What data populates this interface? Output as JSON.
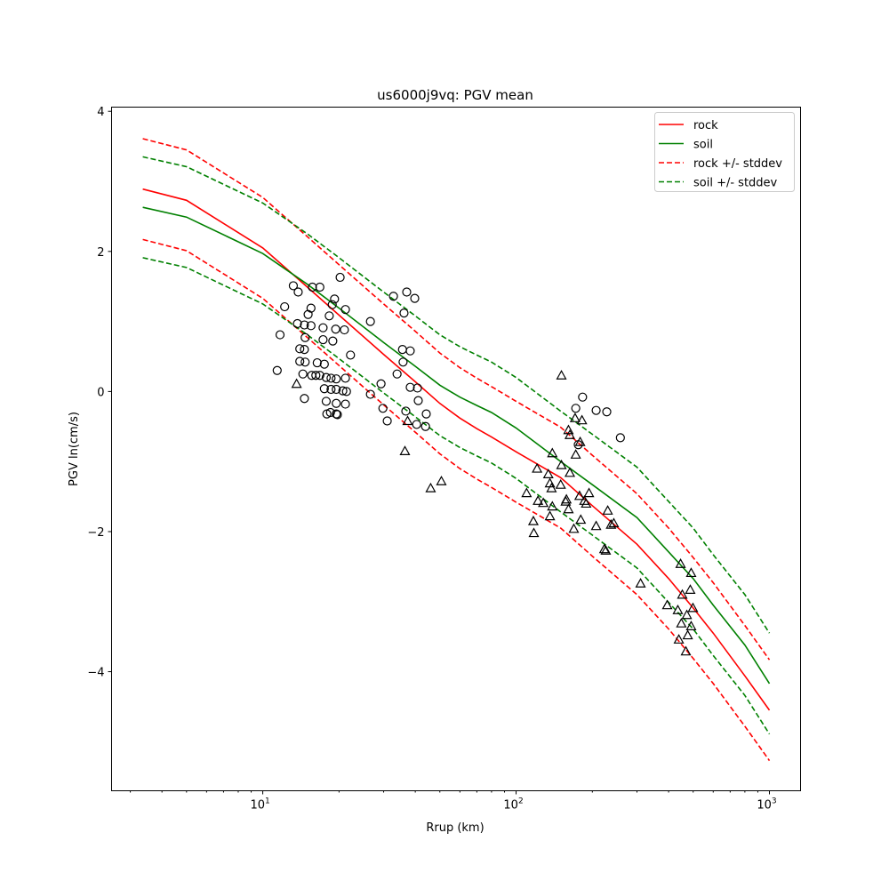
{
  "chart_data": {
    "type": "line",
    "title": "us6000j9vq: PGV mean",
    "xlabel": "Rrup (km)",
    "ylabel": "PGV ln(cm/s)",
    "xscale": "log",
    "xlim": [
      2.53,
      1327
    ],
    "ylim": [
      -5.7,
      4.06
    ],
    "yticks": [
      -4,
      -2,
      0,
      2,
      4
    ],
    "ytick_labels": [
      "−4",
      "−2",
      "0",
      "2",
      "4"
    ],
    "xticks": [
      10,
      100,
      1000
    ],
    "xtick_labels": [
      {
        "base": "10",
        "exp": "1"
      },
      {
        "base": "10",
        "exp": "2"
      },
      {
        "base": "10",
        "exp": "3"
      }
    ],
    "legend_position": "top-right",
    "x": [
      3.36,
      5,
      10,
      15,
      20,
      30,
      40,
      50,
      60,
      70,
      80,
      100,
      150,
      200,
      300,
      400,
      500,
      600,
      800,
      1000
    ],
    "stddev": 0.72,
    "series": [
      {
        "name": "rock",
        "color": "#ff0000",
        "style": "solid",
        "values": [
          2.89,
          2.73,
          2.05,
          1.49,
          1.09,
          0.53,
          0.14,
          -0.17,
          -0.38,
          -0.53,
          -0.65,
          -0.86,
          -1.23,
          -1.63,
          -2.18,
          -2.67,
          -3.09,
          -3.45,
          -4.06,
          -4.55
        ]
      },
      {
        "name": "soil",
        "color": "#008000",
        "style": "solid",
        "values": [
          2.63,
          2.49,
          1.97,
          1.53,
          1.19,
          0.7,
          0.36,
          0.09,
          -0.08,
          -0.2,
          -0.3,
          -0.52,
          -1.0,
          -1.33,
          -1.8,
          -2.29,
          -2.67,
          -3.05,
          -3.62,
          -4.17
        ]
      }
    ],
    "legend": [
      {
        "label": "rock",
        "color": "#ff0000",
        "style": "solid"
      },
      {
        "label": "soil",
        "color": "#008000",
        "style": "solid"
      },
      {
        "label": "rock +/- stddev",
        "color": "#ff0000",
        "style": "dashed"
      },
      {
        "label": "soil +/- stddev",
        "color": "#008000",
        "style": "dashed"
      }
    ],
    "observations_circle": [
      [
        13.2,
        1.51
      ],
      [
        13.8,
        1.42
      ],
      [
        15.7,
        1.49
      ],
      [
        16.8,
        1.49
      ],
      [
        20.2,
        1.63
      ],
      [
        19.2,
        1.32
      ],
      [
        18.8,
        1.24
      ],
      [
        21.2,
        1.17
      ],
      [
        15.5,
        1.19
      ],
      [
        15.1,
        1.1
      ],
      [
        12.2,
        1.21
      ],
      [
        18.3,
        1.08
      ],
      [
        13.7,
        0.97
      ],
      [
        14.6,
        0.95
      ],
      [
        15.5,
        0.94
      ],
      [
        17.3,
        0.91
      ],
      [
        19.4,
        0.89
      ],
      [
        21.0,
        0.88
      ],
      [
        26.6,
        1.0
      ],
      [
        11.7,
        0.81
      ],
      [
        14.7,
        0.77
      ],
      [
        17.3,
        0.74
      ],
      [
        18.9,
        0.72
      ],
      [
        14.0,
        0.61
      ],
      [
        14.6,
        0.6
      ],
      [
        22.2,
        0.52
      ],
      [
        14.0,
        0.43
      ],
      [
        14.7,
        0.42
      ],
      [
        16.4,
        0.41
      ],
      [
        17.5,
        0.39
      ],
      [
        11.4,
        0.3
      ],
      [
        14.4,
        0.25
      ],
      [
        15.6,
        0.23
      ],
      [
        16.2,
        0.23
      ],
      [
        16.8,
        0.23
      ],
      [
        17.8,
        0.2
      ],
      [
        18.6,
        0.19
      ],
      [
        19.5,
        0.18
      ],
      [
        21.2,
        0.19
      ],
      [
        26.6,
        -0.04
      ],
      [
        17.5,
        0.04
      ],
      [
        18.6,
        0.03
      ],
      [
        19.5,
        0.03
      ],
      [
        20.7,
        0.01
      ],
      [
        21.4,
        0.0
      ],
      [
        14.6,
        -0.1
      ],
      [
        17.8,
        -0.14
      ],
      [
        19.5,
        -0.17
      ],
      [
        21.2,
        -0.18
      ],
      [
        17.9,
        -0.32
      ],
      [
        18.5,
        -0.3
      ],
      [
        19.5,
        -0.32
      ],
      [
        19.7,
        -0.33
      ],
      [
        32.8,
        1.36
      ],
      [
        37.0,
        1.42
      ],
      [
        39.8,
        1.33
      ],
      [
        36.1,
        1.12
      ],
      [
        35.6,
        0.6
      ],
      [
        38.2,
        0.58
      ],
      [
        35.8,
        0.42
      ],
      [
        33.9,
        0.25
      ],
      [
        29.3,
        0.11
      ],
      [
        38.2,
        0.06
      ],
      [
        40.8,
        0.05
      ],
      [
        41.1,
        -0.13
      ],
      [
        29.8,
        -0.24
      ],
      [
        36.7,
        -0.28
      ],
      [
        44.2,
        -0.32
      ],
      [
        31.0,
        -0.42
      ],
      [
        40.5,
        -0.47
      ],
      [
        43.9,
        -0.5
      ],
      [
        183,
        -0.08
      ],
      [
        172,
        -0.24
      ],
      [
        207,
        -0.27
      ],
      [
        228,
        -0.29
      ],
      [
        258,
        -0.66
      ],
      [
        176,
        -0.76
      ]
    ],
    "observations_triangle": [
      [
        13.6,
        0.11
      ],
      [
        37.3,
        -0.42
      ],
      [
        36.4,
        -0.85
      ],
      [
        50.7,
        -1.28
      ],
      [
        46.0,
        -1.38
      ],
      [
        151,
        0.23
      ],
      [
        171,
        -0.38
      ],
      [
        182,
        -0.41
      ],
      [
        161,
        -0.55
      ],
      [
        163,
        -0.62
      ],
      [
        179,
        -0.72
      ],
      [
        172,
        -0.9
      ],
      [
        139,
        -0.88
      ],
      [
        121,
        -1.1
      ],
      [
        151,
        -1.05
      ],
      [
        163,
        -1.16
      ],
      [
        134,
        -1.18
      ],
      [
        136,
        -1.31
      ],
      [
        150,
        -1.33
      ],
      [
        138,
        -1.38
      ],
      [
        110,
        -1.45
      ],
      [
        122,
        -1.56
      ],
      [
        128,
        -1.59
      ],
      [
        178,
        -1.49
      ],
      [
        194,
        -1.45
      ],
      [
        158,
        -1.54
      ],
      [
        157,
        -1.57
      ],
      [
        186,
        -1.56
      ],
      [
        189,
        -1.6
      ],
      [
        139,
        -1.64
      ],
      [
        161,
        -1.68
      ],
      [
        136,
        -1.78
      ],
      [
        230,
        -1.7
      ],
      [
        180,
        -1.83
      ],
      [
        117,
        -1.85
      ],
      [
        169,
        -1.96
      ],
      [
        207,
        -1.92
      ],
      [
        237,
        -1.9
      ],
      [
        243,
        -1.88
      ],
      [
        117.5,
        -2.02
      ],
      [
        223,
        -2.25
      ],
      [
        226,
        -2.27
      ],
      [
        310,
        -2.74
      ],
      [
        446,
        -2.46
      ],
      [
        491,
        -2.59
      ],
      [
        487,
        -2.83
      ],
      [
        453,
        -2.9
      ],
      [
        395,
        -3.05
      ],
      [
        499,
        -3.09
      ],
      [
        435,
        -3.12
      ],
      [
        472,
        -3.19
      ],
      [
        449,
        -3.31
      ],
      [
        491,
        -3.35
      ],
      [
        439,
        -3.54
      ],
      [
        476,
        -3.48
      ],
      [
        468,
        -3.71
      ]
    ]
  }
}
